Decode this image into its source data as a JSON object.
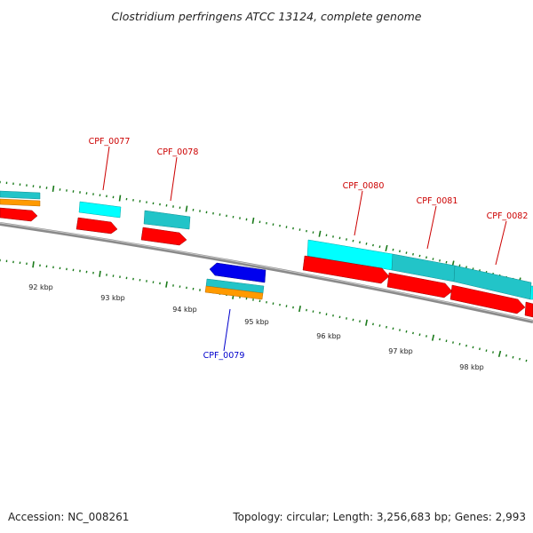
{
  "title": "Clostridium perfringens ATCC 13124, complete genome",
  "footer": {
    "accession": "Accession: NC_008261",
    "summary": "Topology: circular; Length: 3,256,683 bp; Genes: 2,993"
  },
  "colors": {
    "backbone": "#8a8a8a",
    "tick": "#1a7a1a",
    "cds_plus": "#ff0000",
    "cds_minus": "#0000ee",
    "hit_cyan": "#00ffff",
    "hit_teal": "#22c4c8",
    "hit_orange": "#ff9a00",
    "label_plus": "#cc0000",
    "label_minus": "#0000cc"
  },
  "scale_labels": [
    "92 kbp",
    "93 kbp",
    "94 kbp",
    "95 kbp",
    "96 kbp",
    "97 kbp",
    "98 kbp"
  ],
  "genes": [
    {
      "id": "CPF_0077",
      "strand": "+"
    },
    {
      "id": "CPF_0078",
      "strand": "+"
    },
    {
      "id": "CPF_0079",
      "strand": "-"
    },
    {
      "id": "CPF_0080",
      "strand": "+"
    },
    {
      "id": "CPF_0081",
      "strand": "+"
    },
    {
      "id": "CPF_0082",
      "strand": "+"
    }
  ]
}
